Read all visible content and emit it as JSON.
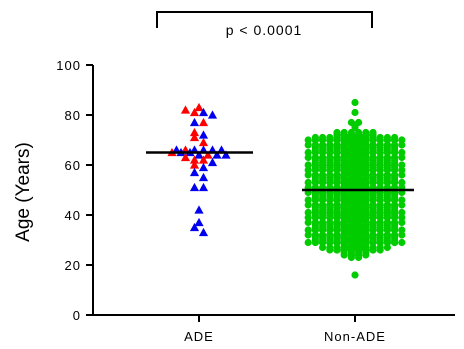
{
  "chart_data": {
    "type": "scatter",
    "title": "",
    "xlabel": "",
    "ylabel": "Age (Years)",
    "ylim": [
      0,
      100
    ],
    "yticks": [
      0,
      20,
      40,
      60,
      80,
      100
    ],
    "categories": [
      "ADE",
      "Non-ADE"
    ],
    "grid": false,
    "annotation": "p < 0.0001",
    "colors": {
      "ade_red": "#ff0000",
      "ade_blue": "#0000ee",
      "non_ade": "#00cc00",
      "median": "#000000"
    },
    "series": [
      {
        "category": "ADE",
        "marker": "triangle",
        "median": 65,
        "points": [
          {
            "y": 83,
            "color": "red"
          },
          {
            "y": 82,
            "color": "red"
          },
          {
            "y": 81,
            "color": "red"
          },
          {
            "y": 81,
            "color": "blue"
          },
          {
            "y": 80,
            "color": "blue"
          },
          {
            "y": 77,
            "color": "blue"
          },
          {
            "y": 77,
            "color": "red"
          },
          {
            "y": 73,
            "color": "red"
          },
          {
            "y": 72,
            "color": "blue"
          },
          {
            "y": 71,
            "color": "red"
          },
          {
            "y": 69,
            "color": "red"
          },
          {
            "y": 66,
            "color": "blue"
          },
          {
            "y": 66,
            "color": "red"
          },
          {
            "y": 66,
            "color": "blue"
          },
          {
            "y": 66,
            "color": "blue"
          },
          {
            "y": 66,
            "color": "blue"
          },
          {
            "y": 66,
            "color": "blue"
          },
          {
            "y": 65,
            "color": "red"
          },
          {
            "y": 65,
            "color": "blue"
          },
          {
            "y": 65,
            "color": "blue"
          },
          {
            "y": 64,
            "color": "blue"
          },
          {
            "y": 64,
            "color": "red"
          },
          {
            "y": 64,
            "color": "blue"
          },
          {
            "y": 64,
            "color": "blue"
          },
          {
            "y": 63,
            "color": "red"
          },
          {
            "y": 62,
            "color": "red"
          },
          {
            "y": 62,
            "color": "red"
          },
          {
            "y": 61,
            "color": "blue"
          },
          {
            "y": 60,
            "color": "red"
          },
          {
            "y": 59,
            "color": "blue"
          },
          {
            "y": 57,
            "color": "blue"
          },
          {
            "y": 55,
            "color": "blue"
          },
          {
            "y": 51,
            "color": "blue"
          },
          {
            "y": 51,
            "color": "blue"
          },
          {
            "y": 42,
            "color": "blue"
          },
          {
            "y": 37,
            "color": "blue"
          },
          {
            "y": 35,
            "color": "blue"
          },
          {
            "y": 33,
            "color": "blue"
          }
        ]
      },
      {
        "category": "Non-ADE",
        "marker": "circle",
        "median": 50,
        "values": [
          85,
          81,
          77,
          76,
          75,
          73,
          72,
          72,
          71,
          71,
          71,
          70,
          70,
          69,
          69,
          68,
          68,
          67,
          67,
          66,
          66,
          65,
          65,
          64,
          64,
          63,
          63,
          62,
          62,
          61,
          61,
          60,
          60,
          60,
          59,
          59,
          58,
          58,
          57,
          57,
          56,
          56,
          55,
          55,
          54,
          54,
          53,
          53,
          52,
          52,
          51,
          51,
          50,
          50,
          50,
          49,
          49,
          48,
          48,
          47,
          47,
          46,
          46,
          45,
          45,
          44,
          44,
          43,
          43,
          42,
          42,
          41,
          41,
          40,
          40,
          40,
          39,
          39,
          38,
          38,
          37,
          37,
          36,
          36,
          35,
          35,
          34,
          34,
          33,
          33,
          32,
          32,
          31,
          31,
          30,
          30,
          29,
          29,
          28,
          27,
          27,
          26,
          26,
          25,
          24,
          24,
          23,
          16
        ],
        "counts": [
          1,
          1,
          2,
          1,
          1,
          6,
          6,
          6,
          3,
          2,
          12,
          14,
          12,
          4,
          3,
          12,
          14,
          12,
          4,
          3,
          12,
          14,
          12,
          4,
          3,
          12,
          14,
          12,
          4,
          3,
          12,
          14,
          12,
          4,
          3,
          12,
          14,
          12,
          4,
          3,
          12,
          14,
          12,
          4,
          3,
          12,
          14,
          12,
          4,
          3,
          12,
          14,
          12,
          4,
          3,
          12,
          14,
          12,
          4,
          3,
          12,
          14,
          12,
          4,
          3,
          12,
          14,
          12,
          4,
          3,
          12,
          14,
          12,
          4,
          3,
          12,
          14,
          12,
          4,
          3,
          12,
          14,
          12,
          4,
          3,
          12,
          14,
          12,
          4,
          3,
          12,
          14,
          12,
          4,
          3,
          12,
          14,
          12,
          4,
          3,
          10,
          8,
          6,
          4,
          4,
          2,
          2,
          1
        ]
      }
    ]
  }
}
